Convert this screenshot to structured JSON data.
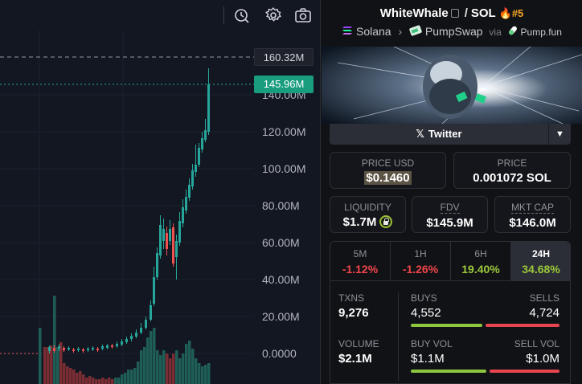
{
  "chart": {
    "axis_labels": [
      "140.00M",
      "120.00M",
      "100.00M",
      "80.00M",
      "60.00M",
      "40.00M",
      "20.00M",
      "0.0000"
    ],
    "high_tag": "160.32M",
    "current_tag": "145.96M",
    "colors": {
      "up": "#26a69a",
      "down": "#ef5350",
      "current": "#199d7e"
    },
    "toolbar_icons": [
      "compare-icon",
      "settings-icon",
      "camera-icon"
    ]
  },
  "header": {
    "base_token": "WhiteWhale",
    "quote_token": "SOL",
    "rank": "#5",
    "chain": "Solana",
    "dex": "PumpSwap",
    "via_label": "via",
    "launchpad": "Pump.fun"
  },
  "twitter": {
    "label": "Twitter"
  },
  "price": {
    "usd_label": "PRICE USD",
    "usd_value": "$0.1460",
    "native_label": "PRICE",
    "native_value": "0.001072 SOL"
  },
  "metrics": {
    "liquidity_label": "LIQUIDITY",
    "liquidity_value": "$1.7M",
    "fdv_label": "FDV",
    "fdv_value": "$145.9M",
    "mktcap_label": "MKT CAP",
    "mktcap_value": "$146.0M"
  },
  "timeframes": [
    {
      "name": "5M",
      "change": "-1.12%"
    },
    {
      "name": "1H",
      "change": "-1.26%"
    },
    {
      "name": "6H",
      "change": "19.40%"
    },
    {
      "name": "24H",
      "change": "34.68%"
    }
  ],
  "stats": {
    "txns_label": "TXNS",
    "txns_value": "9,276",
    "buys_label": "BUYS",
    "buys_value": "4,552",
    "sells_label": "SELLS",
    "sells_value": "4,724",
    "volume_label": "VOLUME",
    "volume_value": "$2.1M",
    "buyvol_label": "BUY VOL",
    "buyvol_value": "$1.1M",
    "sellvol_label": "SELL VOL",
    "sellvol_value": "$1.0M",
    "buys_share": 0.49,
    "buyvol_share": 0.52
  }
}
